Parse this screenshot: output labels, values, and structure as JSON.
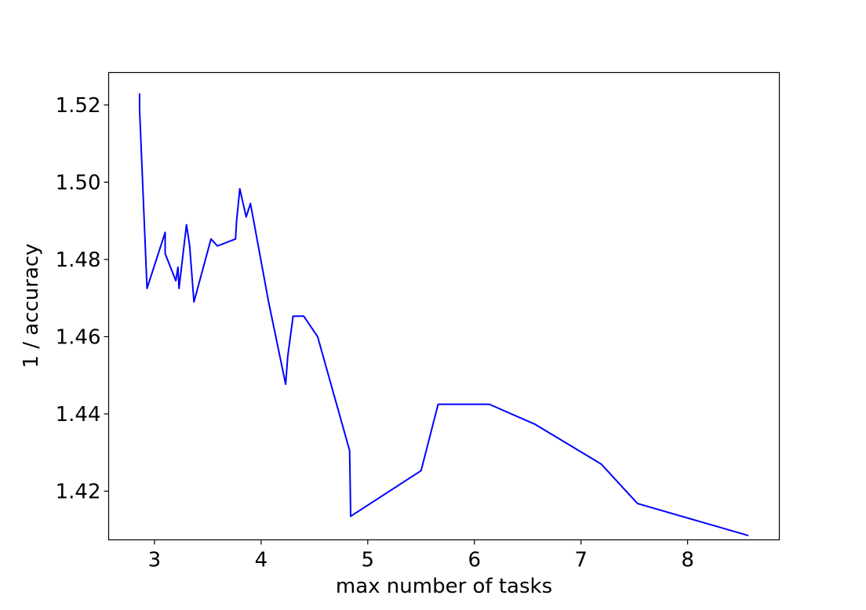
{
  "chart_data": {
    "type": "line",
    "title": "",
    "xlabel": "max number of tasks",
    "ylabel": "1 / accuracy",
    "xlim": [
      2.57,
      8.86
    ],
    "ylim": [
      1.4074,
      1.5284
    ],
    "x_ticks": [
      3,
      4,
      5,
      6,
      7,
      8
    ],
    "x_tick_labels": [
      "3",
      "4",
      "5",
      "6",
      "7",
      "8"
    ],
    "y_ticks": [
      1.42,
      1.44,
      1.46,
      1.48,
      1.5,
      1.52
    ],
    "y_tick_labels": [
      "1.42",
      "1.44",
      "1.46",
      "1.48",
      "1.50",
      "1.52"
    ],
    "grid": false,
    "legend": "none",
    "series": [
      {
        "color": "#0000ff",
        "x": [
          2.86,
          2.86,
          2.93,
          3.1,
          3.1,
          3.2,
          3.22,
          3.23,
          3.3,
          3.33,
          3.37,
          3.53,
          3.59,
          3.76,
          3.77,
          3.8,
          3.86,
          3.9,
          4.07,
          4.23,
          4.25,
          4.3,
          4.4,
          4.53,
          4.83,
          4.83,
          4.84,
          5.5,
          5.66,
          6.14,
          6.57,
          7.19,
          7.53,
          8.57
        ],
        "y": [
          1.523,
          1.519,
          1.4725,
          1.487,
          1.4815,
          1.4745,
          1.478,
          1.4725,
          1.489,
          1.4835,
          1.469,
          1.4853,
          1.4835,
          1.4853,
          1.49,
          1.4983,
          1.491,
          1.4945,
          1.469,
          1.4477,
          1.455,
          1.4653,
          1.4653,
          1.46,
          1.4305,
          1.4305,
          1.4135,
          1.4253,
          1.4425,
          1.4425,
          1.4373,
          1.427,
          1.4168,
          1.4085
        ]
      }
    ]
  }
}
